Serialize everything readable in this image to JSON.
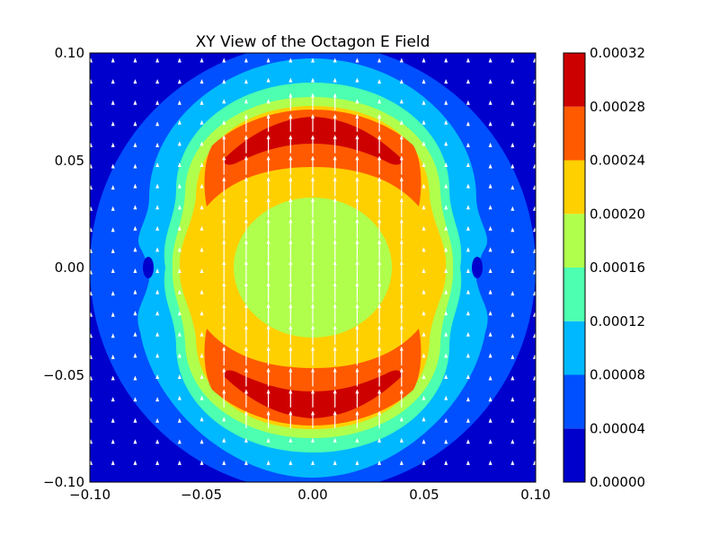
{
  "chart_data": {
    "type": "heatmap",
    "title": "XY View of the Octagon E Field",
    "xlabel": "",
    "ylabel": "",
    "xlim": [
      -0.1,
      0.1
    ],
    "ylim": [
      -0.1,
      0.1
    ],
    "x_ticks": [
      "−0.10",
      "−0.05",
      "0.00",
      "0.05",
      "0.10"
    ],
    "y_ticks": [
      "−0.10",
      "−0.05",
      "0.00",
      "0.05",
      "0.10"
    ],
    "grid": false,
    "overlay": "white quiver arrows pointing in +y direction",
    "colorbar": {
      "range": [
        0.0,
        0.00032
      ],
      "tick_labels": [
        "0.00000",
        "0.00004",
        "0.00008",
        "0.00012",
        "0.00016",
        "0.00020",
        "0.00024",
        "0.00028",
        "0.00032"
      ],
      "levels": [
        {
          "min": 0.0,
          "max": 4e-05,
          "color": "#0000cd"
        },
        {
          "min": 4e-05,
          "max": 8e-05,
          "color": "#0050ff"
        },
        {
          "min": 8e-05,
          "max": 0.00012,
          "color": "#00b8ff"
        },
        {
          "min": 0.00012,
          "max": 0.00016,
          "color": "#4dffb0"
        },
        {
          "min": 0.00016,
          "max": 0.0002,
          "color": "#b0ff4d"
        },
        {
          "min": 0.0002,
          "max": 0.00024,
          "color": "#ffd000"
        },
        {
          "min": 0.00024,
          "max": 0.00028,
          "color": "#ff5a00"
        },
        {
          "min": 0.00028,
          "max": 0.00032,
          "color": "#cd0000"
        }
      ]
    }
  }
}
